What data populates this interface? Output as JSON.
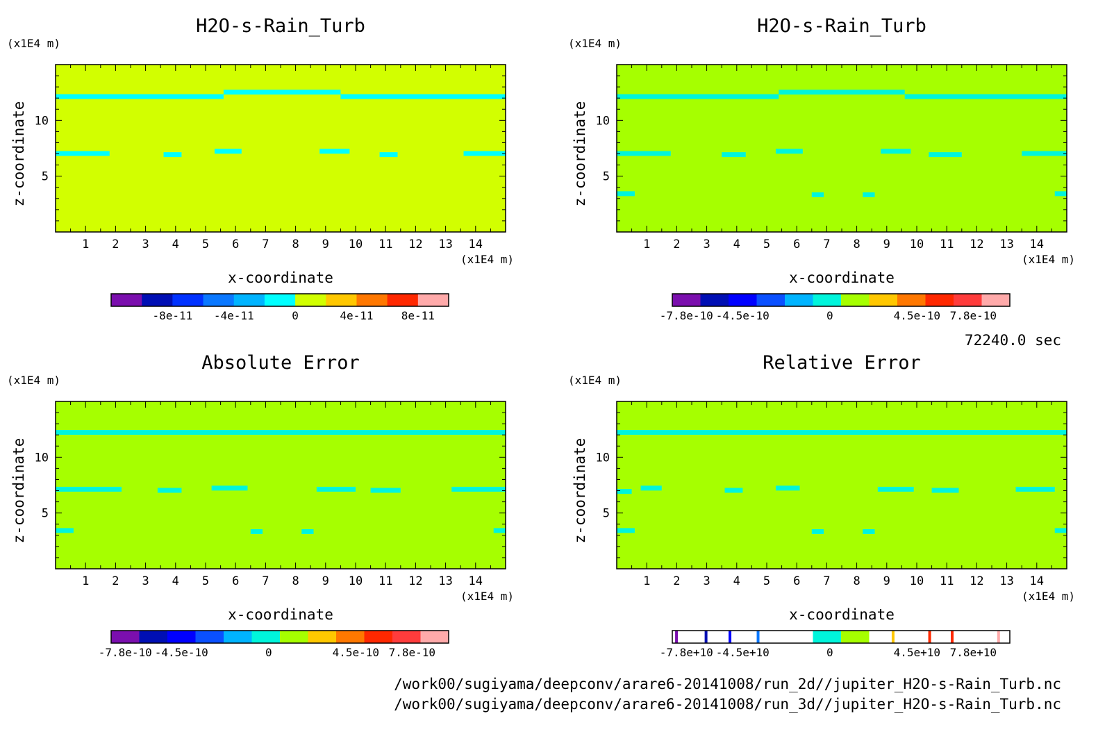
{
  "time_label": "72240.0 sec",
  "footer_lines": [
    "/work00/sugiyama/deepconv/arare6-20141008/run_2d//jupiter_H2O-s-Rain_Turb.nc",
    "/work00/sugiyama/deepconv/arare6-20141008/run_3d//jupiter_H2O-s-Rain_Turb.nc"
  ],
  "palette": [
    "#7b0fae",
    "#000fb4",
    "#0032ff",
    "#0a78ff",
    "#00b4ff",
    "#00ffd7",
    "#b4ff00",
    "#ffc800",
    "#ff7800",
    "#ff2800",
    "#ff3c3c",
    "#ffaaaa"
  ],
  "chart_data": [
    {
      "type": "heatmap",
      "title": "H2O-s-Rain_Turb",
      "xlabel": "x-coordinate",
      "ylabel": "z-coordinate",
      "x_unit": "(x1E4 m)",
      "y_unit": "(x1E4 m)",
      "xlim": [
        0,
        15
      ],
      "ylim": [
        0,
        15
      ],
      "x_ticks": [
        1,
        2,
        3,
        4,
        5,
        6,
        7,
        8,
        9,
        10,
        11,
        12,
        13,
        14
      ],
      "y_ticks": [
        5,
        10
      ],
      "background_color": "#d2ff00",
      "feature_color": "#00ffff",
      "features": [
        {
          "x": [
            0,
            5.6
          ],
          "z": 12.1
        },
        {
          "x": [
            5.6,
            9.5
          ],
          "z": 12.5
        },
        {
          "x": [
            9.5,
            15
          ],
          "z": 12.1
        },
        {
          "x": [
            0,
            1.8
          ],
          "z": 7.0
        },
        {
          "x": [
            3.6,
            4.2
          ],
          "z": 6.9
        },
        {
          "x": [
            5.3,
            6.2
          ],
          "z": 7.2
        },
        {
          "x": [
            8.8,
            9.8
          ],
          "z": 7.2
        },
        {
          "x": [
            10.8,
            11.4
          ],
          "z": 6.9
        },
        {
          "x": [
            13.6,
            15
          ],
          "z": 7.0
        }
      ],
      "colorbar": {
        "colors": [
          "#7b0fae",
          "#000fb4",
          "#0032ff",
          "#0a78ff",
          "#00b4ff",
          "#00ffff",
          "#d2ff00",
          "#ffc800",
          "#ff7800",
          "#ff2800",
          "#ffaaaa"
        ],
        "labels": [
          "-8e-11",
          "-4e-11",
          "0",
          "4e-11",
          "8e-11"
        ],
        "label_positions": [
          1,
          3,
          5,
          7,
          9
        ]
      }
    },
    {
      "type": "heatmap",
      "title": "H2O-s-Rain_Turb",
      "xlabel": "x-coordinate",
      "ylabel": "z-coordinate",
      "x_unit": "(x1E4 m)",
      "y_unit": "(x1E4 m)",
      "xlim": [
        0,
        15
      ],
      "ylim": [
        0,
        15
      ],
      "x_ticks": [
        1,
        2,
        3,
        4,
        5,
        6,
        7,
        8,
        9,
        10,
        11,
        12,
        13,
        14
      ],
      "y_ticks": [
        5,
        10
      ],
      "background_color": "#a6ff00",
      "feature_color": "#00f5dc",
      "features": [
        {
          "x": [
            0,
            5.4
          ],
          "z": 12.1
        },
        {
          "x": [
            5.4,
            9.6
          ],
          "z": 12.5
        },
        {
          "x": [
            9.6,
            15
          ],
          "z": 12.1
        },
        {
          "x": [
            0,
            1.8
          ],
          "z": 7.0
        },
        {
          "x": [
            3.5,
            4.3
          ],
          "z": 6.9
        },
        {
          "x": [
            5.3,
            6.2
          ],
          "z": 7.2
        },
        {
          "x": [
            8.8,
            9.8
          ],
          "z": 7.2
        },
        {
          "x": [
            10.4,
            11.5
          ],
          "z": 6.9
        },
        {
          "x": [
            13.5,
            15
          ],
          "z": 7.0
        },
        {
          "x": [
            0,
            0.6
          ],
          "z": 3.4
        },
        {
          "x": [
            6.5,
            6.9
          ],
          "z": 3.3
        },
        {
          "x": [
            8.2,
            8.6
          ],
          "z": 3.3
        },
        {
          "x": [
            14.6,
            15
          ],
          "z": 3.4
        }
      ],
      "colorbar": {
        "colors": [
          "#7b0fae",
          "#000fb4",
          "#0000ff",
          "#0a50ff",
          "#00b4ff",
          "#00f5dc",
          "#a6ff00",
          "#ffc800",
          "#ff7800",
          "#ff2800",
          "#ff3c3c",
          "#ffaaaa"
        ],
        "labels": [
          "-7.8e-10",
          "-4.5e-10",
          "0",
          "4.5e-10",
          "7.8e-10"
        ],
        "label_positions": [
          0,
          2,
          5.1,
          8.2,
          10.2
        ]
      }
    },
    {
      "type": "heatmap",
      "title": "Absolute Error",
      "xlabel": "x-coordinate",
      "ylabel": "z-coordinate",
      "x_unit": "(x1E4 m)",
      "y_unit": "(x1E4 m)",
      "xlim": [
        0,
        15
      ],
      "ylim": [
        0,
        15
      ],
      "x_ticks": [
        1,
        2,
        3,
        4,
        5,
        6,
        7,
        8,
        9,
        10,
        11,
        12,
        13,
        14
      ],
      "y_ticks": [
        5,
        10
      ],
      "background_color": "#a6ff00",
      "feature_color": "#00f5dc",
      "features": [
        {
          "x": [
            0,
            15
          ],
          "z": 12.2
        },
        {
          "x": [
            0,
            2.2
          ],
          "z": 7.1
        },
        {
          "x": [
            3.4,
            4.2
          ],
          "z": 7.0
        },
        {
          "x": [
            5.2,
            6.4
          ],
          "z": 7.2
        },
        {
          "x": [
            8.7,
            10.0
          ],
          "z": 7.1
        },
        {
          "x": [
            10.5,
            11.5
          ],
          "z": 7.0
        },
        {
          "x": [
            13.2,
            15
          ],
          "z": 7.1
        },
        {
          "x": [
            0,
            0.6
          ],
          "z": 3.4
        },
        {
          "x": [
            6.5,
            6.9
          ],
          "z": 3.3
        },
        {
          "x": [
            8.2,
            8.6
          ],
          "z": 3.3
        },
        {
          "x": [
            14.6,
            15
          ],
          "z": 3.4
        }
      ],
      "colorbar": {
        "colors": [
          "#7b0fae",
          "#000fb4",
          "#0000ff",
          "#0a50ff",
          "#00b4ff",
          "#00f5dc",
          "#a6ff00",
          "#ffc800",
          "#ff7800",
          "#ff2800",
          "#ff3c3c",
          "#ffaaaa"
        ],
        "labels": [
          "-7.8e-10",
          "-4.5e-10",
          "0",
          "4.5e-10",
          "7.8e-10"
        ],
        "label_positions": [
          0,
          2,
          5.1,
          8.2,
          10.2
        ]
      }
    },
    {
      "type": "heatmap",
      "title": "Relative Error",
      "xlabel": "x-coordinate",
      "ylabel": "z-coordinate",
      "x_unit": "(x1E4 m)",
      "y_unit": "(x1E4 m)",
      "xlim": [
        0,
        15
      ],
      "ylim": [
        0,
        15
      ],
      "x_ticks": [
        1,
        2,
        3,
        4,
        5,
        6,
        7,
        8,
        9,
        10,
        11,
        12,
        13,
        14
      ],
      "y_ticks": [
        5,
        10
      ],
      "background_color": "#a6ff00",
      "feature_color": "#00f5dc",
      "features": [
        {
          "x": [
            0,
            15
          ],
          "z": 12.2
        },
        {
          "x": [
            0,
            0.5
          ],
          "z": 6.9
        },
        {
          "x": [
            0.8,
            1.5
          ],
          "z": 7.2
        },
        {
          "x": [
            3.6,
            4.2
          ],
          "z": 7.0
        },
        {
          "x": [
            5.3,
            6.1
          ],
          "z": 7.2
        },
        {
          "x": [
            8.7,
            9.9
          ],
          "z": 7.1
        },
        {
          "x": [
            10.5,
            11.4
          ],
          "z": 7.0
        },
        {
          "x": [
            13.3,
            14.6
          ],
          "z": 7.1
        },
        {
          "x": [
            0,
            0.6
          ],
          "z": 3.4
        },
        {
          "x": [
            6.5,
            6.9
          ],
          "z": 3.3
        },
        {
          "x": [
            8.2,
            8.6
          ],
          "z": 3.3
        },
        {
          "x": [
            14.6,
            15
          ],
          "z": 3.4
        }
      ],
      "colorbar": {
        "colors": [
          "#ffffff",
          "#ffffff",
          "#ffffff",
          "#ffffff",
          "#ffffff",
          "#00f5dc",
          "#a6ff00",
          "#ffffff",
          "#ffffff",
          "#ffffff",
          "#ffffff",
          "#ffffff"
        ],
        "stripes": [
          {
            "at": 0.15,
            "color": "#7b0fae"
          },
          {
            "at": 1.2,
            "color": "#000fb4"
          },
          {
            "at": 2.05,
            "color": "#0000ff"
          },
          {
            "at": 3.05,
            "color": "#0a78ff"
          },
          {
            "at": 7.85,
            "color": "#ffc800"
          },
          {
            "at": 9.15,
            "color": "#ff2800"
          },
          {
            "at": 9.95,
            "color": "#ff2800"
          },
          {
            "at": 11.6,
            "color": "#ffaaaa"
          }
        ],
        "labels": [
          "-7.8e+10",
          "-4.5e+10",
          "0",
          "4.5e+10",
          "7.8e+10"
        ],
        "label_positions": [
          0,
          2,
          5.1,
          8.2,
          10.2
        ]
      }
    }
  ]
}
